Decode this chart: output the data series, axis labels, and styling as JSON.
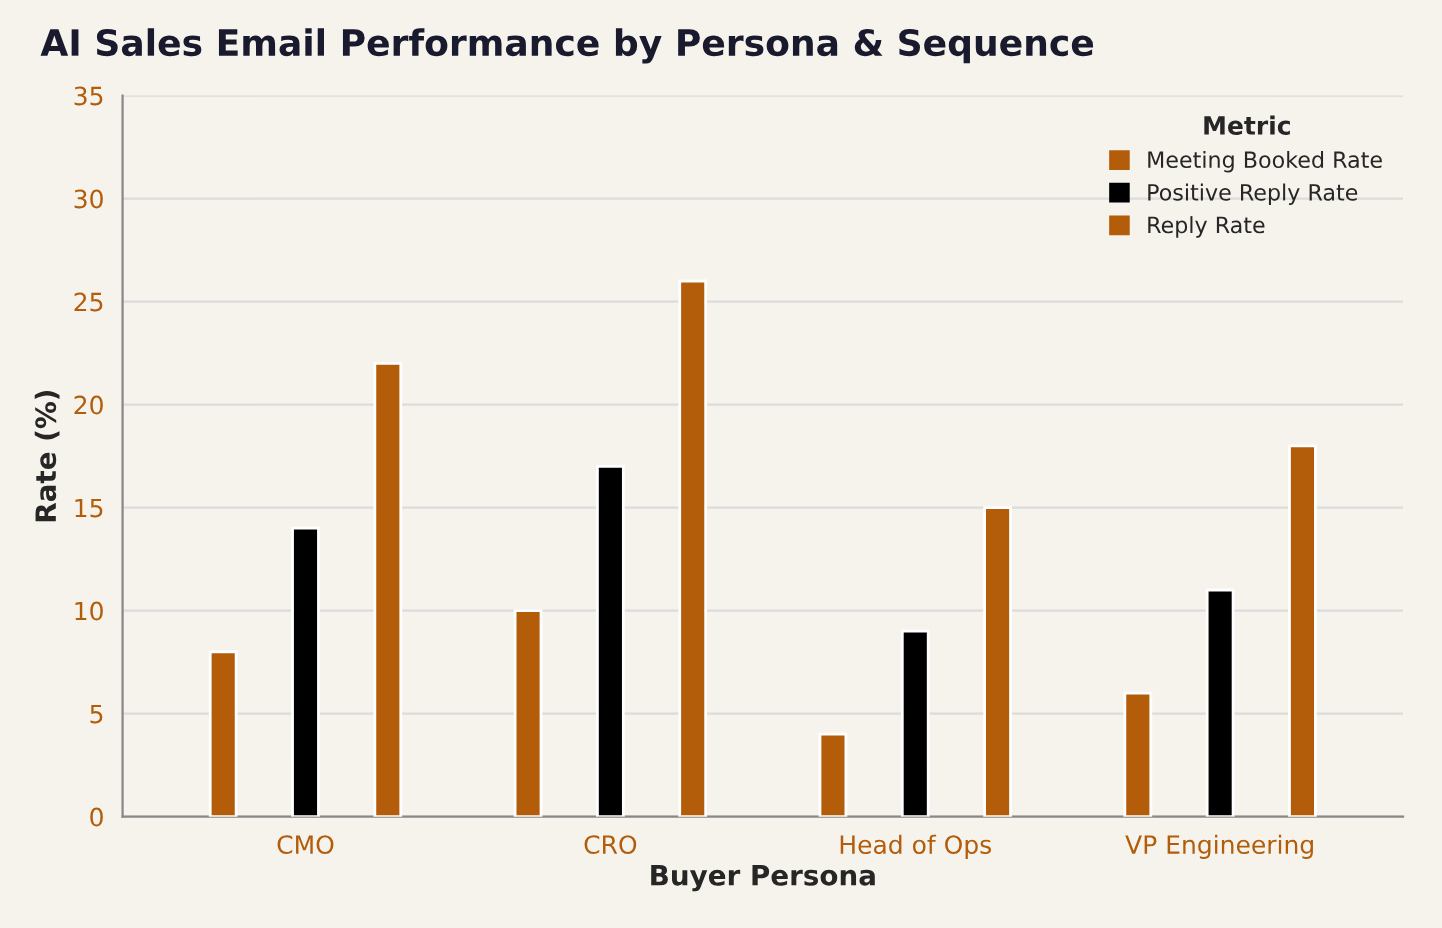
{
  "chart_data": {
    "type": "bar",
    "title": "AI Sales Email Performance by Persona & Sequence",
    "xlabel": "Buyer Persona",
    "ylabel": "Rate (%)",
    "legend_title": "Metric",
    "categories": [
      "CMO",
      "CRO",
      "Head of Ops",
      "VP Engineering"
    ],
    "series": [
      {
        "name": "Meeting Booked Rate",
        "color": "#b35c0a",
        "values": [
          8,
          10,
          4,
          6
        ]
      },
      {
        "name": "Positive Reply Rate",
        "color": "#000000",
        "values": [
          14,
          17,
          9,
          11
        ]
      },
      {
        "name": "Reply Rate",
        "color": "#b35c0a",
        "values": [
          22,
          26,
          15,
          18
        ]
      }
    ],
    "ylim": [
      0,
      35
    ],
    "yticks": [
      0,
      5,
      10,
      15,
      20,
      25,
      30,
      35
    ],
    "grid": "y",
    "legend": "top right"
  }
}
